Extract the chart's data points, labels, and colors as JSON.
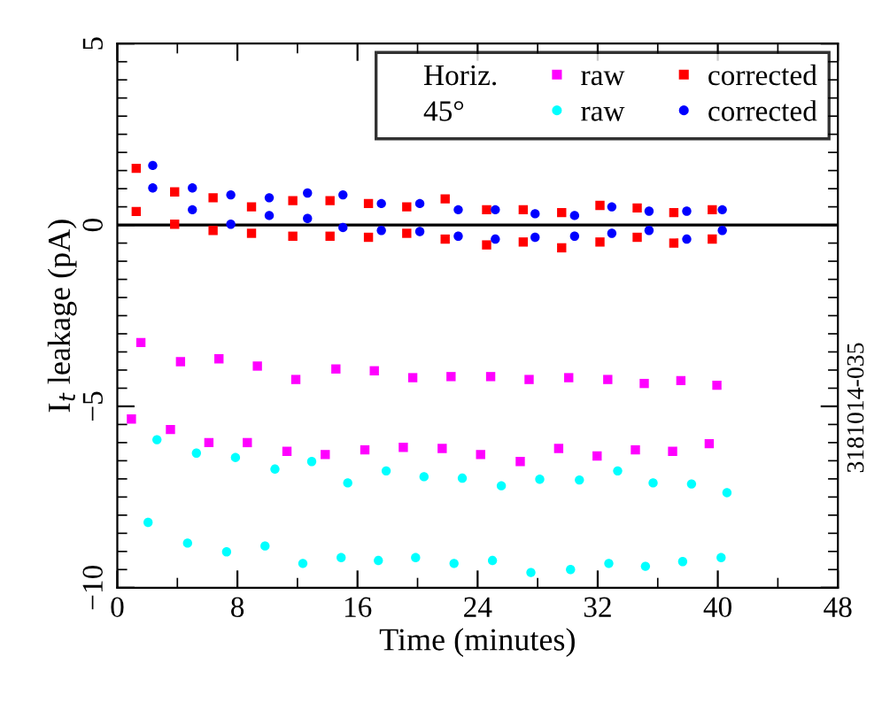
{
  "chart_data": {
    "type": "scatter",
    "xlabel": "Time (minutes)",
    "ylabel": "I$_{t}$ leakage (pA)",
    "annotations": [
      "Horiz.",
      "45°",
      "3181014-035"
    ],
    "xlim": [
      0,
      48
    ],
    "ylim": [
      -10,
      5
    ],
    "xticks": [
      0,
      {
        "value": 4,
        "label": null
      },
      8,
      {
        "value": 12,
        "label": null
      },
      16,
      {
        "value": 20,
        "label": null
      },
      24,
      {
        "value": 28,
        "label": null
      },
      32,
      {
        "value": 36,
        "label": null
      },
      40,
      {
        "value": 44,
        "label": null
      },
      48
    ],
    "yticks": [
      -10,
      {
        "value": -9.5,
        "label": null
      },
      {
        "value": -9,
        "label": null
      },
      {
        "value": -8.5,
        "label": null
      },
      {
        "value": -8,
        "label": null
      },
      {
        "value": -7.5,
        "label": null
      },
      {
        "value": -7,
        "label": null
      },
      {
        "value": -6.5,
        "label": null
      },
      {
        "value": -6,
        "label": null
      },
      {
        "value": -5.5,
        "label": null
      },
      -5,
      {
        "value": -4.5,
        "label": null
      },
      {
        "value": -4,
        "label": null
      },
      {
        "value": -3.5,
        "label": null
      },
      {
        "value": -3,
        "label": null
      },
      {
        "value": -2.5,
        "label": null
      },
      {
        "value": -2,
        "label": null
      },
      {
        "value": -1.5,
        "label": null
      },
      {
        "value": -1,
        "label": null
      },
      {
        "value": -0.5,
        "label": null
      },
      0,
      {
        "value": 0.5,
        "label": null
      },
      {
        "value": 1,
        "label": null
      },
      {
        "value": 1.5,
        "label": null
      },
      {
        "value": 2,
        "label": null
      },
      {
        "value": 2.5,
        "label": null
      },
      {
        "value": 3,
        "label": null
      },
      {
        "value": 3.5,
        "label": null
      },
      {
        "value": 4,
        "label": null
      },
      {
        "value": 4.5,
        "label": null
      },
      5
    ],
    "ref_lines": [
      {
        "axis": "y",
        "value": 0,
        "color": "#000000"
      }
    ],
    "legend": "top right",
    "grid": false,
    "series": [
      {
        "name": "raw",
        "color": "#ff00ff",
        "marker": "square",
        "x": [
          0.94,
          1.57,
          3.54,
          4.21,
          6.1,
          6.77,
          8.66,
          9.33,
          11.3,
          11.89,
          13.85,
          14.56,
          16.49,
          17.12,
          19.05,
          19.68,
          21.64,
          22.23,
          24.2,
          24.87,
          26.84,
          27.43,
          29.4,
          30.07,
          31.96,
          32.67,
          34.51,
          35.1,
          36.99,
          37.54,
          39.43,
          39.94
        ],
        "values": [
          -5.35,
          -3.24,
          -5.64,
          -3.77,
          -6.0,
          -3.69,
          -6.0,
          -3.89,
          -6.24,
          -4.26,
          -6.33,
          -3.97,
          -6.2,
          -4.02,
          -6.13,
          -4.21,
          -6.16,
          -4.18,
          -6.33,
          -4.18,
          -6.52,
          -4.26,
          -6.16,
          -4.21,
          -6.37,
          -4.26,
          -6.2,
          -4.37,
          -6.24,
          -4.29,
          -6.03,
          -4.42
        ]
      },
      {
        "name": "raw",
        "color": "#00ffff",
        "marker": "circle",
        "x": [
          2.05,
          2.64,
          4.68,
          5.27,
          7.28,
          7.87,
          9.84,
          10.5,
          12.36,
          12.95,
          14.91,
          15.35,
          17.39,
          17.91,
          19.87,
          20.43,
          22.43,
          22.98,
          24.99,
          25.58,
          27.55,
          28.14,
          30.19,
          30.78,
          32.74,
          33.33,
          35.18,
          35.69,
          37.66,
          38.25,
          40.22,
          40.61
        ],
        "values": [
          -8.2,
          -5.92,
          -8.77,
          -6.29,
          -9.01,
          -6.41,
          -8.85,
          -6.73,
          -9.33,
          -6.52,
          -9.17,
          -7.11,
          -9.25,
          -6.78,
          -9.17,
          -6.94,
          -9.33,
          -6.98,
          -9.25,
          -7.19,
          -9.58,
          -7.01,
          -9.5,
          -7.03,
          -9.33,
          -6.78,
          -9.41,
          -7.11,
          -9.28,
          -7.14,
          -9.17,
          -7.38
        ]
      },
      {
        "name": "corrected",
        "color": "#ff0000",
        "marker": "square",
        "x": [
          1.26,
          1.26,
          3.82,
          3.82,
          6.38,
          6.38,
          8.94,
          8.94,
          11.69,
          11.69,
          14.17,
          14.17,
          16.73,
          16.73,
          19.28,
          19.28,
          21.84,
          21.84,
          24.6,
          24.6,
          27.04,
          27.04,
          29.6,
          29.6,
          32.15,
          32.15,
          34.63,
          34.63,
          37.07,
          37.07,
          39.63,
          39.63
        ],
        "values": [
          0.37,
          1.56,
          0.02,
          0.91,
          -0.15,
          0.75,
          -0.23,
          0.5,
          -0.31,
          0.67,
          -0.31,
          0.67,
          -0.34,
          0.59,
          -0.23,
          0.5,
          -0.39,
          0.72,
          -0.55,
          0.42,
          -0.47,
          0.42,
          -0.63,
          0.34,
          -0.47,
          0.54,
          -0.34,
          0.47,
          -0.5,
          0.34,
          -0.39,
          0.42
        ]
      },
      {
        "name": "corrected",
        "color": "#0000ff",
        "marker": "circle",
        "x": [
          2.36,
          2.36,
          5.0,
          5.0,
          7.56,
          7.56,
          10.12,
          10.12,
          12.67,
          12.67,
          15.03,
          15.03,
          17.59,
          17.59,
          20.15,
          20.15,
          22.71,
          22.71,
          25.18,
          25.18,
          27.83,
          27.83,
          30.46,
          30.46,
          32.94,
          32.94,
          35.42,
          35.42,
          37.93,
          37.93,
          40.3,
          40.3
        ],
        "values": [
          1.02,
          1.64,
          0.42,
          1.02,
          0.02,
          0.83,
          0.26,
          0.75,
          0.18,
          0.88,
          -0.07,
          0.83,
          -0.15,
          0.59,
          -0.18,
          0.59,
          -0.31,
          0.42,
          -0.39,
          0.42,
          -0.34,
          0.31,
          -0.31,
          0.26,
          -0.23,
          0.5,
          -0.15,
          0.38,
          -0.39,
          0.38,
          -0.15,
          0.42
        ]
      }
    ]
  }
}
